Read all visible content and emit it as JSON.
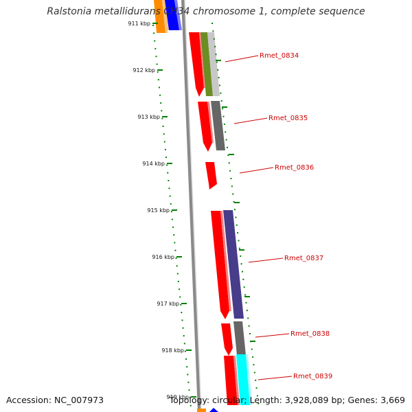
{
  "title": "Ralstonia metallidurans CH34 chromosome 1, complete sequence",
  "footer": {
    "accession": "Accession: NC_007973",
    "summary": "Topology: circular; Length: 3,928,089 bp; Genes: 3,669"
  },
  "ticks": [
    "911 kbp",
    "912 kbp",
    "913 kbp",
    "914 kbp",
    "915 kbp",
    "916 kbp",
    "917 kbp",
    "918 kbp",
    "919 kbp"
  ],
  "genes": [
    {
      "label": "Rmet_0834"
    },
    {
      "label": "Rmet_0835"
    },
    {
      "label": "Rmet_0836"
    },
    {
      "label": "Rmet_0837"
    },
    {
      "label": "Rmet_0838"
    },
    {
      "label": "Rmet_0839"
    }
  ],
  "colors": {
    "cds_red": "#ff0000",
    "olive": "#6b8e23",
    "light_gray": "#c8c8c8",
    "dark_gray": "#666666",
    "slate_blue": "#483d8b",
    "cyan": "#00ffff",
    "orange": "#ff8c00",
    "blue": "#0000ff",
    "tick_green": "#008000",
    "backbone": "#8a8a8a",
    "label_red": "#cc0000"
  }
}
